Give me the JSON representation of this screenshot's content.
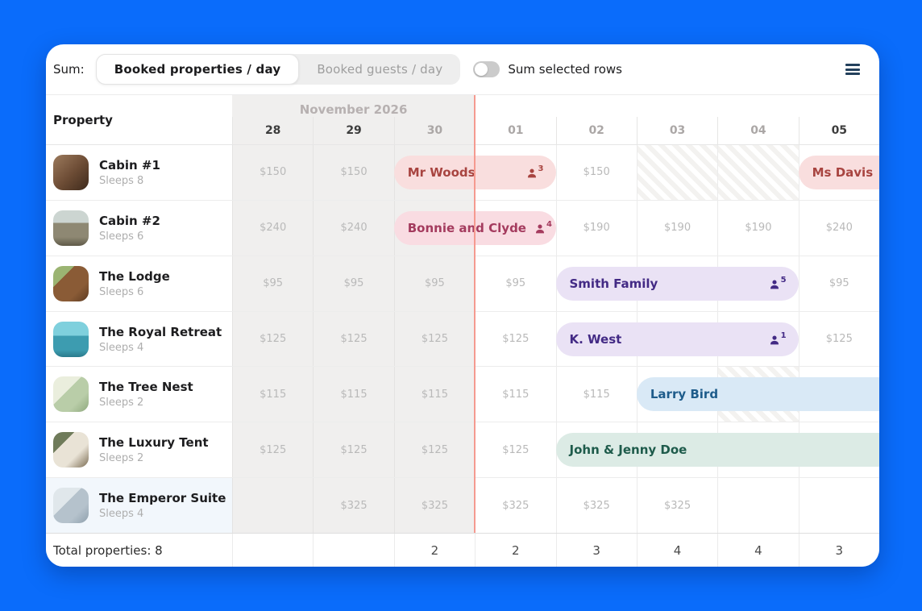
{
  "toolbar": {
    "sum_label": "Sum:",
    "segments": [
      {
        "label": "Booked properties / day",
        "active": true
      },
      {
        "label": "Booked guests / day",
        "active": false
      }
    ],
    "toggle": {
      "label": "Sum selected rows",
      "on": false
    },
    "menu_icon": "hamburger-menu-icon"
  },
  "calendar": {
    "property_header": "Property",
    "month_label": "November 2026",
    "today_line_color": "#f59a90",
    "days": [
      {
        "label": "28",
        "weekend": true,
        "past": true
      },
      {
        "label": "29",
        "weekend": true,
        "past": true
      },
      {
        "label": "30",
        "weekend": false,
        "past": true
      },
      {
        "label": "01",
        "weekend": false,
        "past": false
      },
      {
        "label": "02",
        "weekend": false,
        "past": false
      },
      {
        "label": "03",
        "weekend": false,
        "past": false
      },
      {
        "label": "04",
        "weekend": false,
        "past": false
      },
      {
        "label": "05",
        "weekend": true,
        "past": false
      }
    ]
  },
  "themes": {
    "red": {
      "bg": "#f9dede",
      "text": "#a84440"
    },
    "crimson": {
      "bg": "#f9dce2",
      "text": "#a43b5e"
    },
    "purple": {
      "bg": "#eae2f5",
      "text": "#432a85"
    },
    "blue": {
      "bg": "#d9e9f6",
      "text": "#1e5c8b"
    },
    "teal": {
      "bg": "#dcebe5",
      "text": "#1e5b4b"
    }
  },
  "rows": [
    {
      "name": "Cabin #1",
      "sleeps": "Sleeps 8",
      "photo": "cabin1",
      "selected": false,
      "cells": [
        "$150",
        "$150",
        "",
        "",
        "$150",
        "",
        "",
        ""
      ],
      "hatched": [
        5,
        6
      ],
      "bookings": [
        {
          "label": "Mr Woods",
          "guests": "3",
          "start": 2,
          "span": 2,
          "theme": "red",
          "clipped": false
        },
        {
          "label": "Ms Davis",
          "guests": "",
          "start": 7,
          "span": 1,
          "theme": "red",
          "clipped": true
        }
      ]
    },
    {
      "name": "Cabin #2",
      "sleeps": "Sleeps 6",
      "photo": "cabin2",
      "selected": false,
      "cells": [
        "$240",
        "$240",
        "",
        "",
        "$190",
        "$190",
        "$190",
        "$240"
      ],
      "hatched": [],
      "bookings": [
        {
          "label": "Bonnie and Clyde",
          "guests": "4",
          "start": 2,
          "span": 2,
          "theme": "crimson",
          "clipped": false
        }
      ]
    },
    {
      "name": "The Lodge",
      "sleeps": "Sleeps 6",
      "photo": "lodge",
      "selected": false,
      "cells": [
        "$95",
        "$95",
        "$95",
        "$95",
        "",
        "",
        "",
        "$95"
      ],
      "hatched": [],
      "bookings": [
        {
          "label": "Smith Family",
          "guests": "5",
          "start": 4,
          "span": 3,
          "theme": "purple",
          "clipped": false
        }
      ]
    },
    {
      "name": "The Royal Retreat",
      "sleeps": "Sleeps 4",
      "photo": "royal",
      "selected": false,
      "cells": [
        "$125",
        "$125",
        "$125",
        "$125",
        "",
        "",
        "",
        "$125"
      ],
      "hatched": [],
      "bookings": [
        {
          "label": "K. West",
          "guests": "1",
          "start": 4,
          "span": 3,
          "theme": "purple",
          "clipped": false
        }
      ]
    },
    {
      "name": "The Tree Nest",
      "sleeps": "Sleeps 2",
      "photo": "treenest",
      "selected": false,
      "cells": [
        "$115",
        "$115",
        "$115",
        "$115",
        "$115",
        "",
        "",
        ""
      ],
      "hatched": [
        6
      ],
      "bookings": [
        {
          "label": "Larry Bird",
          "guests": "",
          "start": 5,
          "span": 3,
          "theme": "blue",
          "clipped": true
        }
      ]
    },
    {
      "name": "The Luxury Tent",
      "sleeps": "Sleeps 2",
      "photo": "tent",
      "selected": false,
      "cells": [
        "$125",
        "$125",
        "$125",
        "$125",
        "",
        "",
        "",
        ""
      ],
      "hatched": [],
      "bookings": [
        {
          "label": "John & Jenny Doe",
          "guests": "",
          "start": 4,
          "span": 4,
          "theme": "teal",
          "clipped": true
        }
      ]
    },
    {
      "name": "The Emperor Suite",
      "sleeps": "Sleeps 4",
      "photo": "emperor",
      "selected": true,
      "cells": [
        "",
        "$325",
        "$325",
        "$325",
        "$325",
        "$325",
        "",
        ""
      ],
      "hatched": [],
      "bookings": []
    }
  ],
  "totals": {
    "label": "Total properties: 8",
    "values": [
      "",
      "",
      "2",
      "2",
      "3",
      "4",
      "4",
      "3"
    ]
  }
}
